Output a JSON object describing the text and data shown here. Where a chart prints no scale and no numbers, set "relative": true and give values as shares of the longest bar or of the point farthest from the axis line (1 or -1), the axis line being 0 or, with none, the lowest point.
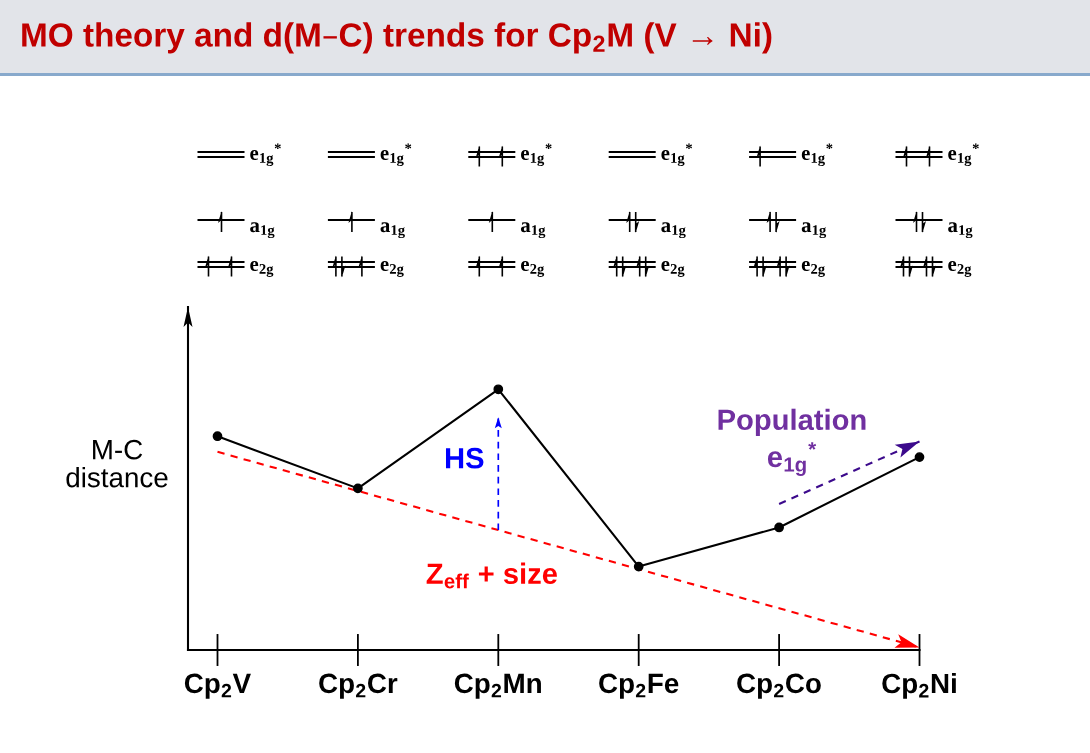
{
  "chart_data": {
    "type": "line",
    "title": "MO theory and d(M–C) trends for Cp$_{2}$M (V → Ni)",
    "ylabel": "M-C\ndistance",
    "categories": [
      "Cp$_{2}$V",
      "Cp$_{2}$Cr",
      "Cp$_{2}$Mn",
      "Cp$_{2}$Fe",
      "Cp$_{2}$Co",
      "Cp$_{2}$Ni"
    ],
    "relative": true,
    "series": [
      {
        "color": "#000000",
        "values": [
          0.82,
          0.62,
          1,
          0.32,
          0.47,
          0.74
        ],
        "marker": "circle",
        "line_style": "solid"
      },
      {
        "name": "Z$_{eff}$ + size",
        "values": [
          0.76,
          0.61,
          0.46,
          0.31,
          0.16,
          0.01
        ],
        "color": "#ff0000",
        "line_style": "dashed"
      },
      {
        "name": "Population\ne$_{1g}$$^{*}$",
        "values": [
          null,
          null,
          null,
          null,
          0.56,
          0.8
        ],
        "color": "#3c0a8c",
        "line_style": "dashed"
      }
    ],
    "annotations": [
      "e$_{1g}$$^{*}$",
      "e$_{1g}$$^{*}$",
      "e$_{1g}$$^{*}$",
      "e$_{1g}$$^{*}$",
      "e$_{1g}$$^{*}$",
      "e$_{1g}$$^{*}$",
      "a$_{1g}$",
      "a$_{1g}$",
      "a$_{1g}$",
      "a$_{1g}$",
      "a$_{1g}$",
      "a$_{1g}$",
      "e$_{2g}$",
      "e$_{2g}$",
      "e$_{2g}$",
      "e$_{2g}$",
      "e$_{2g}$",
      "e$_{2g}$",
      {
        "text": "HS",
        "x": "Cp$_{2}$Mn",
        "y": 1
      }
    ]
  }
}
